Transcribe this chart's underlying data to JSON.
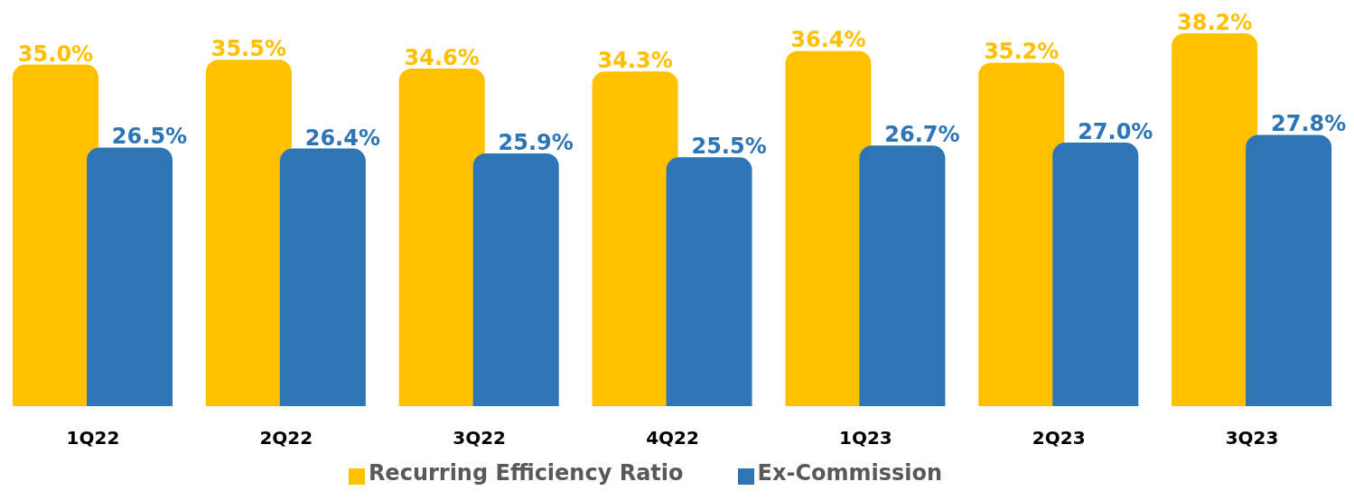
{
  "chart_data": {
    "type": "bar",
    "categories": [
      "1Q22",
      "2Q22",
      "3Q22",
      "4Q22",
      "1Q23",
      "2Q23",
      "3Q23"
    ],
    "series": [
      {
        "name": "Recurring  Efficiency Ratio",
        "color": "#ffc000",
        "values": [
          35.0,
          35.5,
          34.6,
          34.3,
          36.4,
          35.2,
          38.2
        ],
        "value_labels": [
          "35.0%",
          "35.5%",
          "34.6%",
          "34.3%",
          "36.4%",
          "35.2%",
          "38.2%"
        ]
      },
      {
        "name": "Ex-Commission",
        "color": "#2e75b6",
        "values": [
          26.5,
          26.4,
          25.9,
          25.5,
          26.7,
          27.0,
          27.8
        ],
        "value_labels": [
          "26.5%",
          "26.4%",
          "25.9%",
          "25.5%",
          "26.7%",
          "27.0%",
          "27.8%"
        ]
      }
    ],
    "legend": "bottom",
    "grid": false
  }
}
